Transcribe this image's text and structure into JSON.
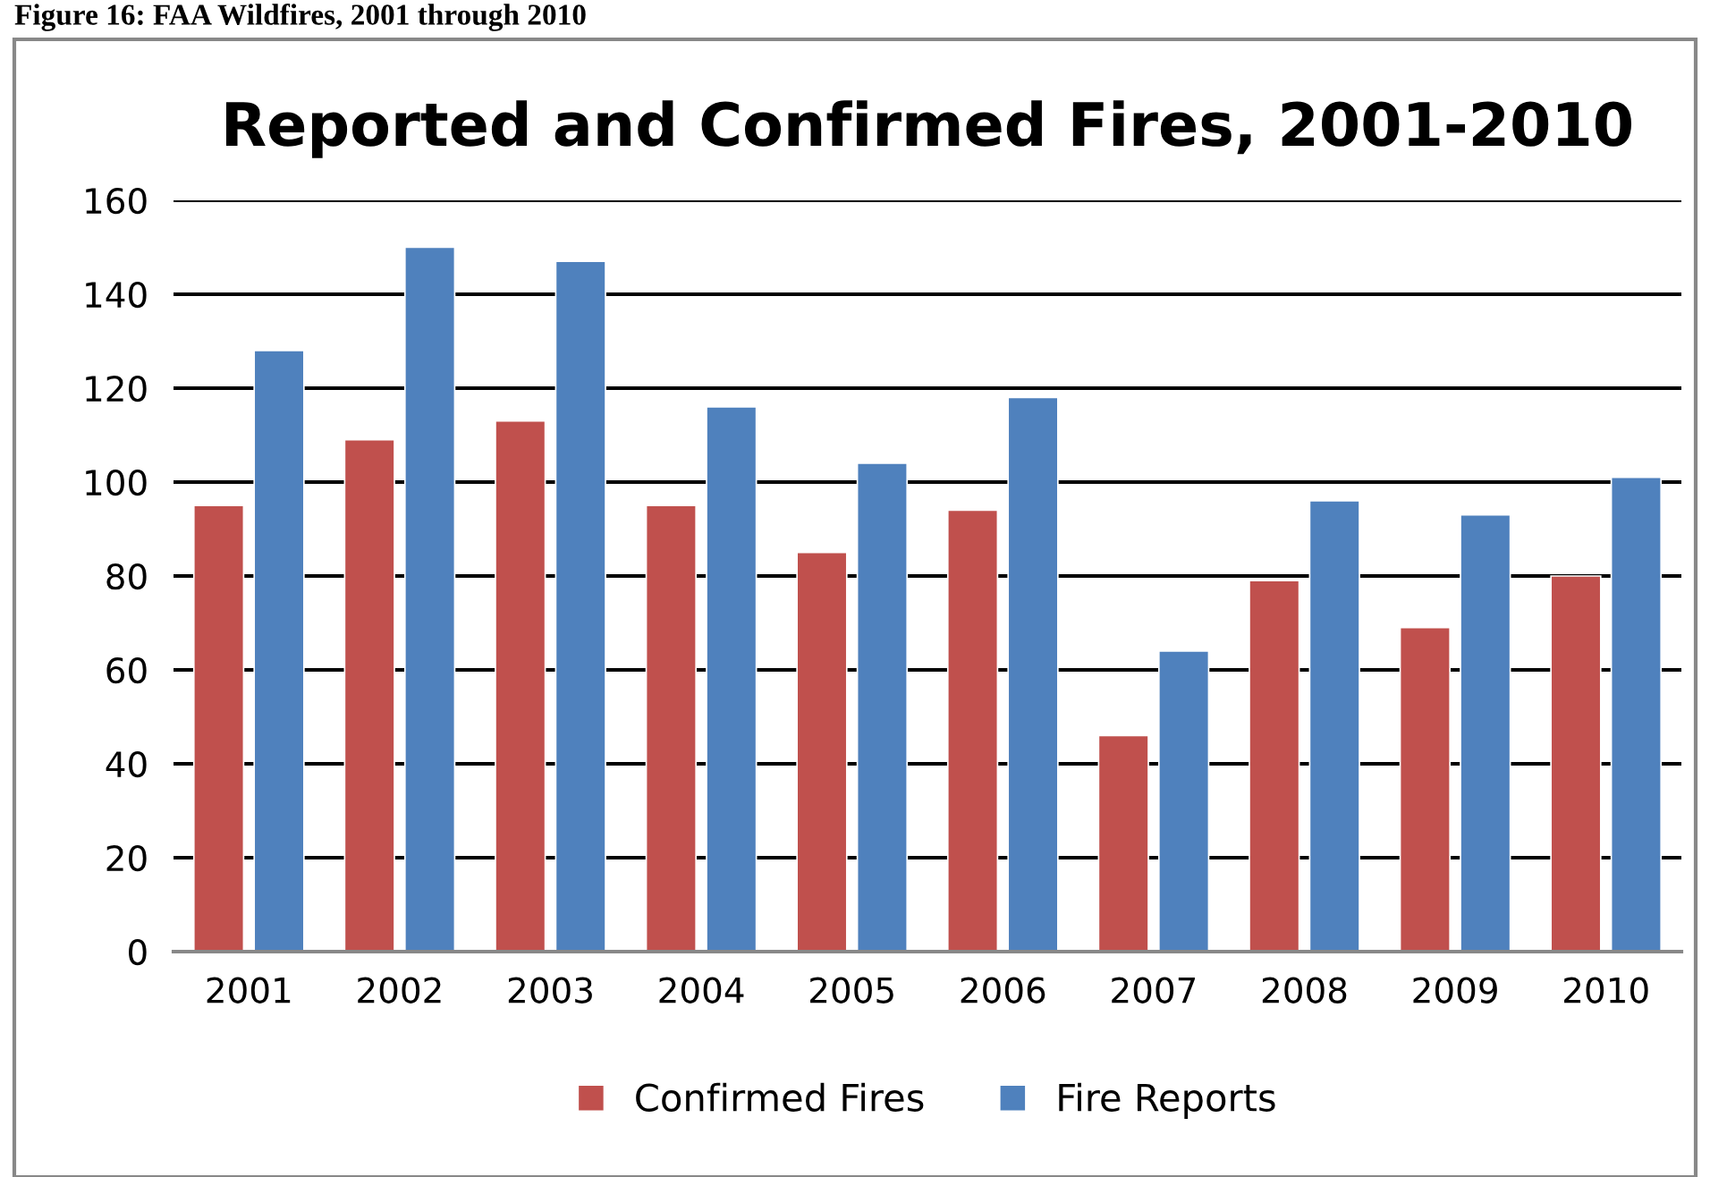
{
  "chart_data": {
    "type": "bar",
    "title": "Reported and Confirmed Fires, 2001-2010",
    "annotations": [
      "Figure 16: FAA Wildfires, 2001 through 2010"
    ],
    "categories": [
      "2001",
      "2002",
      "2003",
      "2004",
      "2005",
      "2006",
      "2007",
      "2008",
      "2009",
      "2010"
    ],
    "series": [
      {
        "name": "Confirmed Fires",
        "color": "#c0504d",
        "values": [
          95,
          109,
          113,
          95,
          85,
          94,
          46,
          79,
          69,
          80
        ]
      },
      {
        "name": "Fire Reports",
        "color": "#4f81bd",
        "values": [
          128,
          150,
          147,
          116,
          104,
          118,
          64,
          96,
          93,
          101
        ]
      }
    ],
    "ylim": [
      0,
      160
    ],
    "yticks": [
      0,
      20,
      40,
      60,
      80,
      100,
      120,
      140,
      160
    ],
    "grid": "y",
    "legend": "bottom"
  }
}
